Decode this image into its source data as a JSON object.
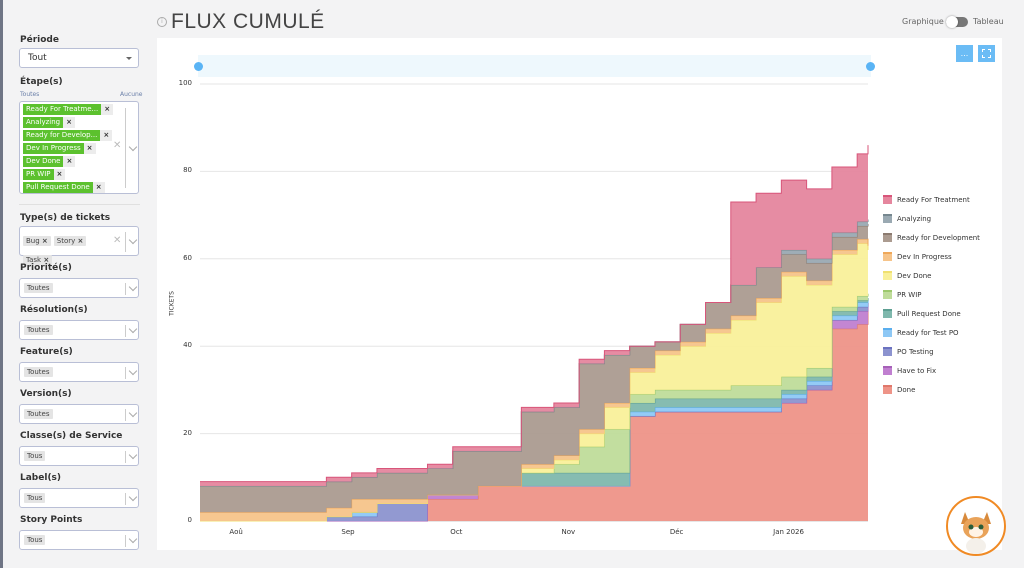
{
  "header": {
    "title": "FLUX CUMULÉ",
    "view_toggle": {
      "left": "Graphique",
      "right": "Tableau",
      "selected": "Graphique"
    }
  },
  "toolbar": {
    "menu_label": "...",
    "fullscreen_icon": "fullscreen-icon",
    "info_icon": "info-icon"
  },
  "filters": {
    "periode": {
      "label": "Période",
      "value": "Tout"
    },
    "etapes": {
      "label": "Étape(s)",
      "all_link": "Toutes",
      "none_link": "Aucune",
      "tags": [
        "Ready For Treatme...",
        "Analyzing",
        "Ready for Develop...",
        "Dev In Progress",
        "Dev Done",
        "PR WIP",
        "Pull Request Done"
      ],
      "tag_color": "#5cc12e"
    },
    "types": {
      "label": "Type(s) de tickets",
      "chips": [
        "Bug",
        "Story",
        "Task"
      ]
    },
    "priorite": {
      "label": "Priorité(s)",
      "value": "Toutes"
    },
    "resolution": {
      "label": "Résolution(s)",
      "value": "Toutes"
    },
    "feature": {
      "label": "Feature(s)",
      "value": "Toutes"
    },
    "version": {
      "label": "Version(s)",
      "value": "Toutes"
    },
    "classe": {
      "label": "Classe(s) de Service",
      "value": "Tous"
    },
    "label": {
      "label": "Label(s)",
      "value": "Tous"
    },
    "story_points": {
      "label": "Story Points",
      "value": "Tous"
    }
  },
  "chart_data": {
    "type": "area",
    "stacked": true,
    "interpolation": "step",
    "ylabel": "TICKETS",
    "ylim": [
      0,
      100
    ],
    "yticks": [
      "0",
      "20",
      "40",
      "60",
      "80",
      "100"
    ],
    "xticks": [
      {
        "label": "Aoû",
        "date": "2025-08-01"
      },
      {
        "label": "Sep",
        "date": "2025-09-01"
      },
      {
        "label": "Oct",
        "date": "2025-10-01"
      },
      {
        "label": "Nov",
        "date": "2025-11-01"
      },
      {
        "label": "Déc",
        "date": "2025-12-01"
      },
      {
        "label": "Jan 2026",
        "date": "2026-01-01"
      }
    ],
    "grid": true,
    "legend_position": "right",
    "x": [
      "2025-07-22",
      "2025-07-29",
      "2025-08-05",
      "2025-08-12",
      "2025-08-19",
      "2025-08-26",
      "2025-09-02",
      "2025-09-09",
      "2025-09-16",
      "2025-09-23",
      "2025-09-30",
      "2025-10-07",
      "2025-10-14",
      "2025-10-19",
      "2025-10-28",
      "2025-11-04",
      "2025-11-11",
      "2025-11-18",
      "2025-11-25",
      "2025-12-02",
      "2025-12-09",
      "2025-12-16",
      "2025-12-23",
      "2025-12-30",
      "2026-01-06",
      "2026-01-13",
      "2026-01-20",
      "2026-01-23"
    ],
    "series": [
      {
        "name": "Done",
        "color": "#ee9488",
        "line": "#e0786b",
        "values": [
          0,
          0,
          0,
          0,
          0,
          0,
          0,
          0,
          0,
          5,
          5,
          8,
          8,
          8,
          8,
          8,
          8,
          24,
          25,
          25,
          25,
          25,
          25,
          27,
          30,
          44,
          45,
          50
        ]
      },
      {
        "name": "Have to Fix",
        "color": "#c07fd0",
        "line": "#a660b8",
        "values": [
          0,
          0,
          0,
          0,
          0,
          0,
          0,
          0,
          0,
          1,
          1,
          0,
          0,
          0,
          0,
          0,
          0,
          0,
          0,
          0,
          0,
          0,
          0,
          0,
          0,
          2,
          3,
          1
        ]
      },
      {
        "name": "PO Testing",
        "color": "#8c93cf",
        "line": "#6b72c0",
        "values": [
          0,
          0,
          0,
          0,
          0,
          1,
          1,
          4,
          4,
          0,
          0,
          0,
          0,
          0,
          0,
          0,
          0,
          0,
          0,
          0,
          0,
          0,
          0,
          1,
          1,
          0,
          1,
          0
        ]
      },
      {
        "name": "Ready for Test PO",
        "color": "#8ec8f5",
        "line": "#5aaeee",
        "values": [
          0,
          0,
          0,
          0,
          0,
          0,
          1,
          0,
          0,
          0,
          0,
          0,
          0,
          0,
          0,
          0,
          0,
          1,
          1,
          1,
          1,
          1,
          1,
          1,
          1,
          1,
          1,
          0
        ]
      },
      {
        "name": "Pull Request Done",
        "color": "#7fb8ad",
        "line": "#5d9f92",
        "values": [
          0,
          0,
          0,
          0,
          0,
          0,
          0,
          0,
          0,
          0,
          0,
          0,
          0,
          3,
          3,
          3,
          3,
          2,
          2,
          2,
          2,
          2,
          2,
          1,
          1,
          1,
          0.5,
          0
        ]
      },
      {
        "name": "PR WIP",
        "color": "#bfdc9a",
        "line": "#9cc86c",
        "values": [
          0,
          0,
          0,
          0,
          0,
          0,
          0,
          0,
          0,
          0,
          0,
          0,
          0,
          0,
          2,
          6,
          10,
          2,
          2,
          2,
          2,
          3,
          3,
          3,
          2,
          1,
          1,
          1
        ]
      },
      {
        "name": "Dev Done",
        "color": "#f9f09a",
        "line": "#f0e070",
        "values": [
          0,
          0,
          0,
          0,
          0,
          0,
          0,
          0,
          0,
          0,
          0,
          0,
          0,
          1,
          1,
          3,
          5,
          5,
          8,
          10,
          13,
          15,
          19,
          23,
          19,
          12,
          12,
          10
        ]
      },
      {
        "name": "Dev In Progress",
        "color": "#f6c48a",
        "line": "#efa85a",
        "values": [
          2,
          2,
          2,
          2,
          2,
          2,
          3,
          1,
          1,
          0,
          0,
          0,
          0,
          1,
          1,
          1,
          1,
          1,
          1,
          1,
          1,
          1,
          1,
          1,
          1,
          1,
          1,
          1
        ]
      },
      {
        "name": "Ready for Development",
        "color": "#ab9b90",
        "line": "#8c7b70",
        "values": [
          6,
          6,
          6,
          6,
          6,
          6,
          5,
          6,
          6,
          6,
          10,
          8,
          8,
          12,
          11,
          15,
          11,
          5,
          2,
          4,
          6,
          7,
          7,
          4,
          4,
          3,
          3,
          5
        ]
      },
      {
        "name": "Analyzing",
        "color": "#9aa9b2",
        "line": "#76878f",
        "values": [
          0,
          0,
          0,
          0,
          0,
          0,
          0,
          0,
          0,
          0,
          0,
          0,
          0,
          0,
          0,
          0,
          0,
          0,
          0,
          0,
          0,
          0,
          0,
          1,
          1,
          1,
          1,
          1
        ]
      },
      {
        "name": "Ready For Treatment",
        "color": "#e5869e",
        "line": "#d8557a",
        "values": [
          1,
          1,
          1,
          1,
          1,
          1,
          1,
          1,
          1,
          1,
          1,
          1,
          1,
          1,
          1,
          1,
          1,
          0,
          0,
          0,
          0,
          19,
          17,
          16,
          16,
          15,
          15.5,
          17
        ]
      }
    ]
  }
}
